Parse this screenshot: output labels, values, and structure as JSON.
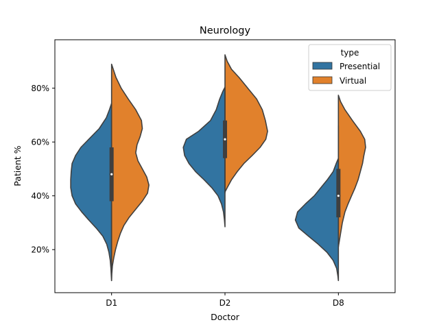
{
  "chart_data": {
    "type": "violin",
    "title": "Neurology",
    "xlabel": "Doctor",
    "ylabel": "Patient %",
    "categories": [
      "D1",
      "D2",
      "D8"
    ],
    "ylim": [
      4,
      98
    ],
    "yticks": [
      20,
      40,
      60,
      80
    ],
    "ytick_labels": [
      "20%",
      "40%",
      "60%",
      "80%"
    ],
    "split": true,
    "legend": {
      "title": "type",
      "position": "top-right",
      "entries": [
        {
          "name": "Presential",
          "color": "#3274a1"
        },
        {
          "name": "Virtual",
          "color": "#e1812c"
        }
      ]
    },
    "series": [
      {
        "name": "Presential",
        "side": "left",
        "color": "#3274a1",
        "violins": [
          {
            "category": "D1",
            "density": [
              [
                74.4,
                0
              ],
              [
                72,
                0.05
              ],
              [
                69,
                0.12
              ],
              [
                65,
                0.28
              ],
              [
                62,
                0.46
              ],
              [
                58,
                0.7
              ],
              [
                55,
                0.82
              ],
              [
                52,
                0.9
              ],
              [
                49,
                0.92
              ],
              [
                46,
                0.93
              ],
              [
                43,
                0.93
              ],
              [
                40,
                0.9
              ],
              [
                37,
                0.82
              ],
              [
                34,
                0.68
              ],
              [
                31,
                0.52
              ],
              [
                28,
                0.35
              ],
              [
                25,
                0.2
              ],
              [
                22,
                0.11
              ],
              [
                19,
                0.06
              ],
              [
                16,
                0.03
              ],
              [
                13,
                0.015
              ],
              [
                10,
                0.005
              ],
              [
                8.5,
                0
              ]
            ],
            "box": {
              "q1": 38,
              "median": 48,
              "q3": 58,
              "whisker_low": 14,
              "whisker_high": 72
            }
          },
          {
            "category": "D2",
            "density": [
              [
                80.4,
                0
              ],
              [
                78.8,
                0.05
              ],
              [
                76,
                0.12
              ],
              [
                72,
                0.2
              ],
              [
                68,
                0.33
              ],
              [
                64,
                0.6
              ],
              [
                61,
                0.88
              ],
              [
                58,
                0.95
              ],
              [
                55,
                0.92
              ],
              [
                52,
                0.82
              ],
              [
                49,
                0.67
              ],
              [
                46,
                0.48
              ],
              [
                43,
                0.3
              ],
              [
                40,
                0.16
              ],
              [
                37,
                0.08
              ],
              [
                34,
                0.035
              ],
              [
                31,
                0.012
              ],
              [
                28.5,
                0
              ]
            ],
            "box": {
              "q1": 54,
              "median": 61,
              "q3": 68,
              "whisker_low": 41,
              "whisker_high": 80
            }
          },
          {
            "category": "D8",
            "density": [
              [
                53.9,
                0
              ],
              [
                52,
                0.05
              ],
              [
                49,
                0.12
              ],
              [
                46,
                0.25
              ],
              [
                43,
                0.4
              ],
              [
                40,
                0.55
              ],
              [
                37,
                0.75
              ],
              [
                34,
                0.93
              ],
              [
                31,
                0.98
              ],
              [
                28,
                0.9
              ],
              [
                25,
                0.68
              ],
              [
                22,
                0.46
              ],
              [
                19,
                0.26
              ],
              [
                16,
                0.12
              ],
              [
                13,
                0.04
              ],
              [
                10,
                0.01
              ],
              [
                8.5,
                0
              ]
            ],
            "box": {
              "q1": 32,
              "median": 40,
              "q3": 50,
              "whisker_low": 21,
              "whisker_high": 66
            }
          }
        ]
      },
      {
        "name": "Virtual",
        "side": "right",
        "color": "#e1812c",
        "violins": [
          {
            "category": "D1",
            "density": [
              [
                88.9,
                0
              ],
              [
                87,
                0.04
              ],
              [
                84,
                0.1
              ],
              [
                80,
                0.22
              ],
              [
                76,
                0.38
              ],
              [
                72,
                0.55
              ],
              [
                68,
                0.68
              ],
              [
                65,
                0.7
              ],
              [
                62,
                0.65
              ],
              [
                59,
                0.58
              ],
              [
                56,
                0.55
              ],
              [
                53,
                0.6
              ],
              [
                50,
                0.7
              ],
              [
                47,
                0.8
              ],
              [
                44,
                0.85
              ],
              [
                41,
                0.82
              ],
              [
                38,
                0.7
              ],
              [
                35,
                0.55
              ],
              [
                32,
                0.4
              ],
              [
                29,
                0.28
              ],
              [
                26,
                0.2
              ],
              [
                23,
                0.14
              ],
              [
                20,
                0.09
              ],
              [
                17,
                0.05
              ],
              [
                14,
                0.02
              ],
              [
                11,
                0.005
              ],
              [
                8.5,
                0
              ]
            ],
            "box": {
              "q1": 38,
              "median": 48,
              "q3": 58,
              "whisker_low": 14,
              "whisker_high": 72
            }
          },
          {
            "category": "D2",
            "density": [
              [
                92.4,
                0
              ],
              [
                90,
                0.05
              ],
              [
                87,
                0.15
              ],
              [
                84,
                0.32
              ],
              [
                80,
                0.52
              ],
              [
                76,
                0.72
              ],
              [
                72,
                0.85
              ],
              [
                68,
                0.92
              ],
              [
                64,
                0.97
              ],
              [
                61,
                0.93
              ],
              [
                58,
                0.8
              ],
              [
                55,
                0.62
              ],
              [
                52,
                0.43
              ],
              [
                49,
                0.28
              ],
              [
                46,
                0.15
              ],
              [
                43,
                0.05
              ],
              [
                41.4,
                0
              ]
            ],
            "box": {
              "q1": 54,
              "median": 61,
              "q3": 68,
              "whisker_low": 41,
              "whisker_high": 80
            }
          },
          {
            "category": "D8",
            "density": [
              [
                77.4,
                0
              ],
              [
                75,
                0.05
              ],
              [
                72,
                0.15
              ],
              [
                68,
                0.32
              ],
              [
                64,
                0.5
              ],
              [
                61,
                0.6
              ],
              [
                58,
                0.62
              ],
              [
                55,
                0.58
              ],
              [
                52,
                0.55
              ],
              [
                49,
                0.5
              ],
              [
                46,
                0.45
              ],
              [
                43,
                0.38
              ],
              [
                40,
                0.3
              ],
              [
                37,
                0.22
              ],
              [
                34,
                0.15
              ],
              [
                30,
                0.09
              ],
              [
                26,
                0.05
              ],
              [
                23,
                0.02
              ],
              [
                21,
                0
              ]
            ],
            "box": {
              "q1": 32,
              "median": 40,
              "q3": 50,
              "whisker_low": 21,
              "whisker_high": 66
            }
          }
        ]
      }
    ]
  }
}
